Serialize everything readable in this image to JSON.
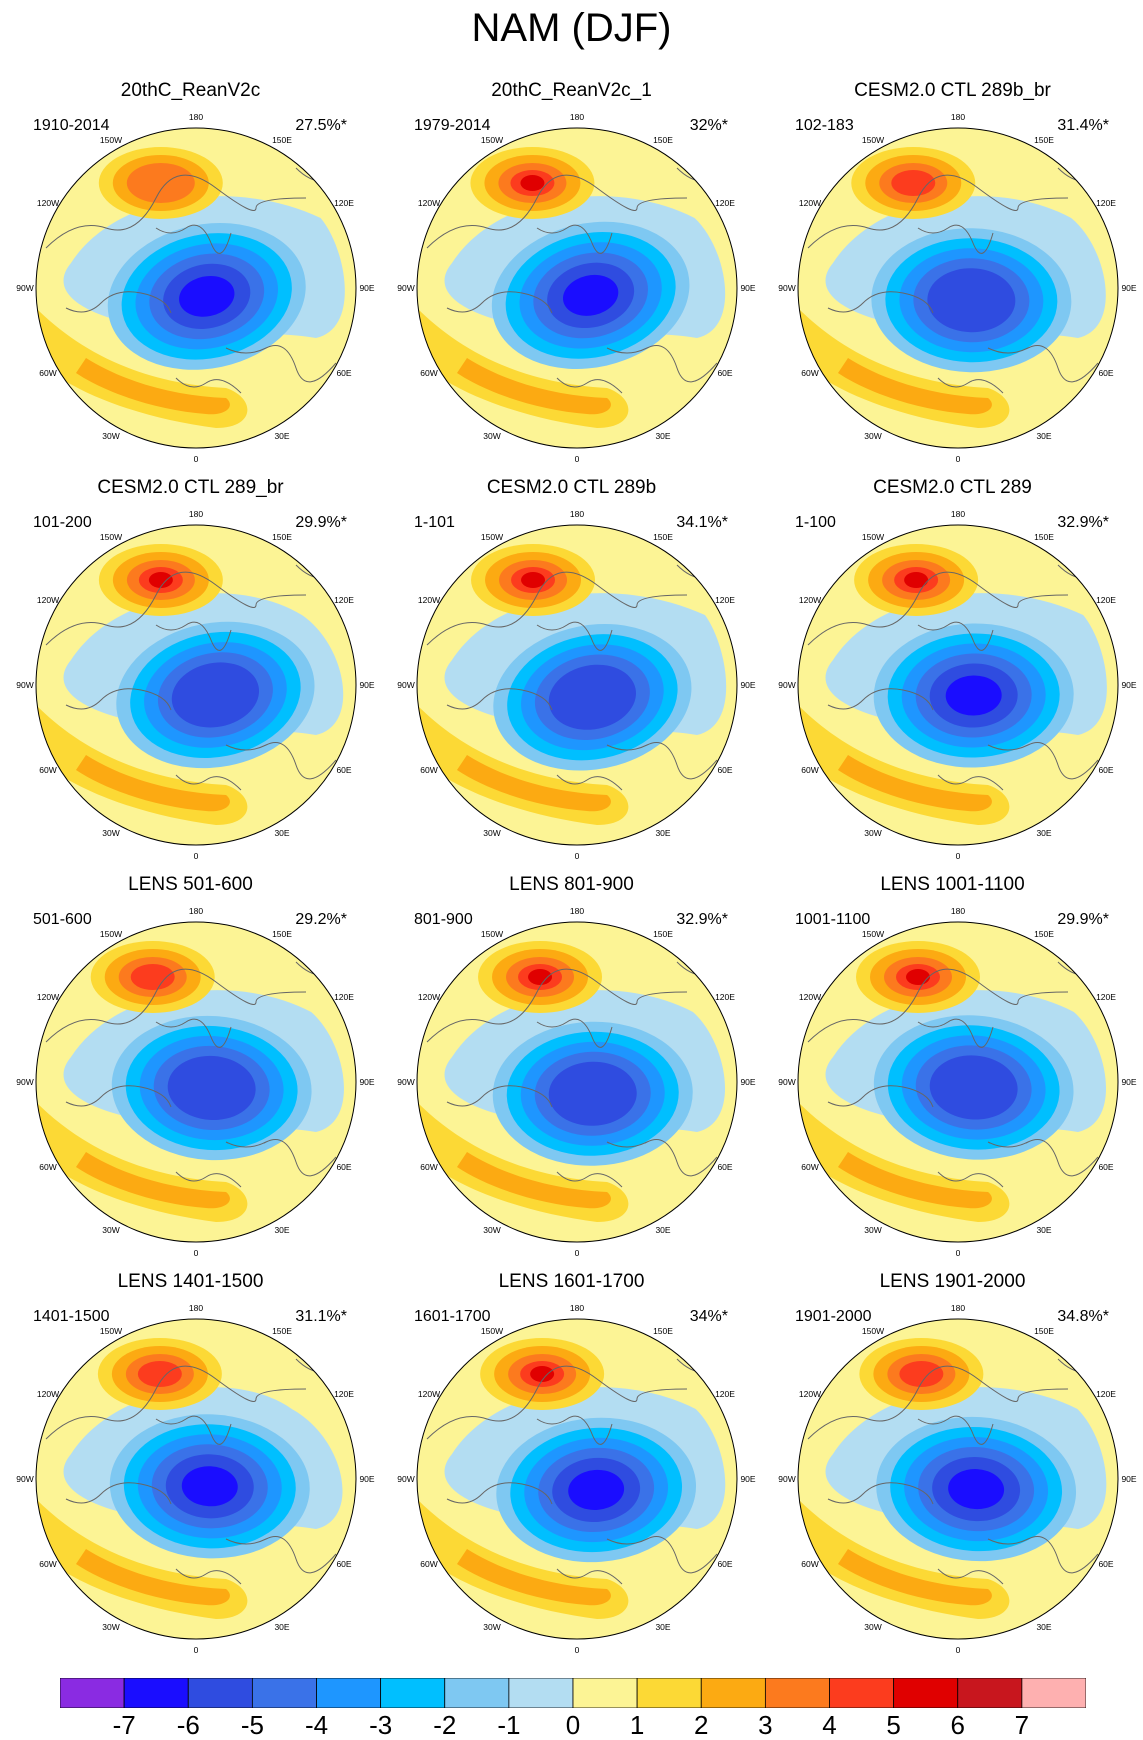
{
  "title": "NAM (DJF)",
  "panels": [
    {
      "title": "20thC_ReanV2c",
      "years": "1910-2014",
      "percent": "27.5%*"
    },
    {
      "title": "20thC_ReanV2c_1",
      "years": "1979-2014",
      "percent": "32%*"
    },
    {
      "title": "CESM2.0 CTL 289b_br",
      "years": "102-183",
      "percent": "31.4%*"
    },
    {
      "title": "CESM2.0 CTL 289_br",
      "years": "101-200",
      "percent": "29.9%*"
    },
    {
      "title": "CESM2.0 CTL 289b",
      "years": "1-101",
      "percent": "34.1%*"
    },
    {
      "title": "CESM2.0 CTL 289",
      "years": "1-100",
      "percent": "32.9%*"
    },
    {
      "title": "LENS 501-600",
      "years": "501-600",
      "percent": "29.2%*"
    },
    {
      "title": "LENS 801-900",
      "years": "801-900",
      "percent": "32.9%*"
    },
    {
      "title": "LENS 1001-1100",
      "years": "1001-1100",
      "percent": "29.9%*"
    },
    {
      "title": "LENS 1401-1500",
      "years": "1401-1500",
      "percent": "31.1%*"
    },
    {
      "title": "LENS 1601-1700",
      "years": "1601-1700",
      "percent": "34%*"
    },
    {
      "title": "LENS 1901-2000",
      "years": "1901-2000",
      "percent": "34.8%*"
    }
  ],
  "longitude_labels": {
    "lon_180": "180",
    "lon_150w": "150W",
    "lon_150e": "150E",
    "lon_120w": "120W",
    "lon_120e": "120E",
    "lon_90w": "90W",
    "lon_90e": "90E",
    "lon_60w": "60W",
    "lon_60e": "60E",
    "lon_30w": "30W",
    "lon_30e": "30E",
    "lon_0": "0"
  },
  "colorbar": {
    "ticks": [
      "-7",
      "-6",
      "-5",
      "-4",
      "-3",
      "-2",
      "-1",
      "0",
      "1",
      "2",
      "3",
      "4",
      "5",
      "6",
      "7"
    ],
    "colors": [
      "#8a2be2",
      "#1a0dff",
      "#2f4ce0",
      "#3a72e8",
      "#1e96ff",
      "#00bfff",
      "#7ec8f2",
      "#b3ddf2",
      "#fcf495",
      "#fcd935",
      "#fcaa12",
      "#fc7a1e",
      "#fc3c1e",
      "#e00000",
      "#c8161e",
      "#feb0b0"
    ]
  }
}
